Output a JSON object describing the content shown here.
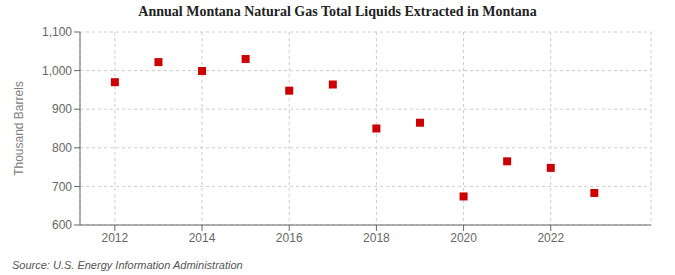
{
  "chart_data": {
    "type": "scatter",
    "title": "Annual Montana Natural Gas Total Liquids Extracted in Montana",
    "y_label": "Thousand Barrels",
    "annotations": [
      "Source: U.S. Energy Information Administration"
    ],
    "x": [
      2012,
      2013,
      2014,
      2015,
      2016,
      2017,
      2018,
      2019,
      2020,
      2021,
      2022,
      2023
    ],
    "values": [
      970,
      1022,
      999,
      1030,
      948,
      964,
      850,
      865,
      674,
      765,
      748,
      683
    ],
    "color": "#cc0000",
    "marker": "square",
    "xlim": [
      2011.2,
      2024.3
    ],
    "xticks": [
      2012,
      2014,
      2016,
      2018,
      2020,
      2022
    ],
    "ylim": [
      600,
      1100
    ],
    "yticks": [
      600,
      700,
      800,
      900,
      {
        "value": 1000,
        "label": "1,000"
      },
      {
        "value": 1100,
        "label": "1,100"
      }
    ],
    "grid": true
  }
}
